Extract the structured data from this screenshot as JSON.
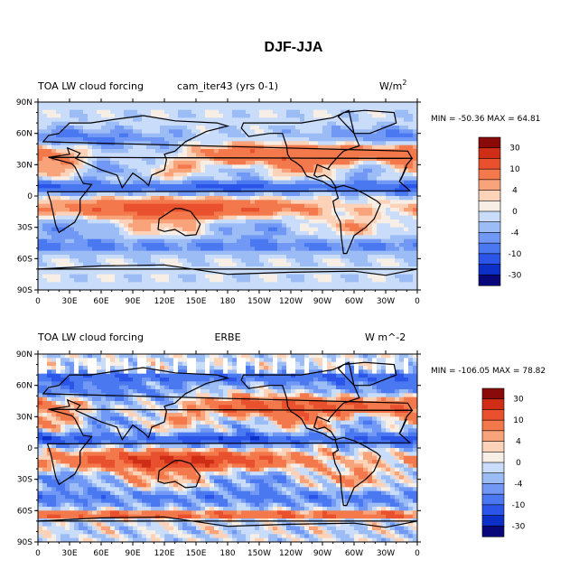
{
  "figure_title": "DJF-JJA",
  "x_ticks": [
    "0",
    "30E",
    "60E",
    "90E",
    "120E",
    "150E",
    "180",
    "150W",
    "120W",
    "90W",
    "60W",
    "30W",
    "0"
  ],
  "y_ticks": [
    "90N",
    "60N",
    "30N",
    "0",
    "30S",
    "60S",
    "90S"
  ],
  "colors": {
    "scale": [
      "#08087a",
      "#0b2fc7",
      "#2a55e8",
      "#4a78f0",
      "#7098f4",
      "#9cbcf6",
      "#c9dcfa",
      "#f7eee6",
      "#fcd2b9",
      "#f9a37b",
      "#f3784b",
      "#e9502d",
      "#cf2d16",
      "#8a0a0a"
    ],
    "coastline": "#000000"
  },
  "panels": [
    {
      "title_left": "TOA LW cloud forcing",
      "title_center": "cam_iter43 (yrs 0-1)",
      "units": "W/m",
      "units_sup": "2",
      "stats": "MIN = -50.36 MAX =  64.81",
      "colorbar_labels": [
        "30",
        "10",
        "4",
        "0",
        "-4",
        "-10",
        "-30"
      ],
      "has_missing": false
    },
    {
      "title_left": "TOA LW cloud forcing",
      "title_center": "ERBE",
      "units": "W m^-2",
      "units_sup": "",
      "stats": "MIN = -106.05 MAX =  78.82",
      "colorbar_labels": [
        "30",
        "10",
        "4",
        "0",
        "-4",
        "-10",
        "-30"
      ],
      "has_missing": true
    }
  ]
}
